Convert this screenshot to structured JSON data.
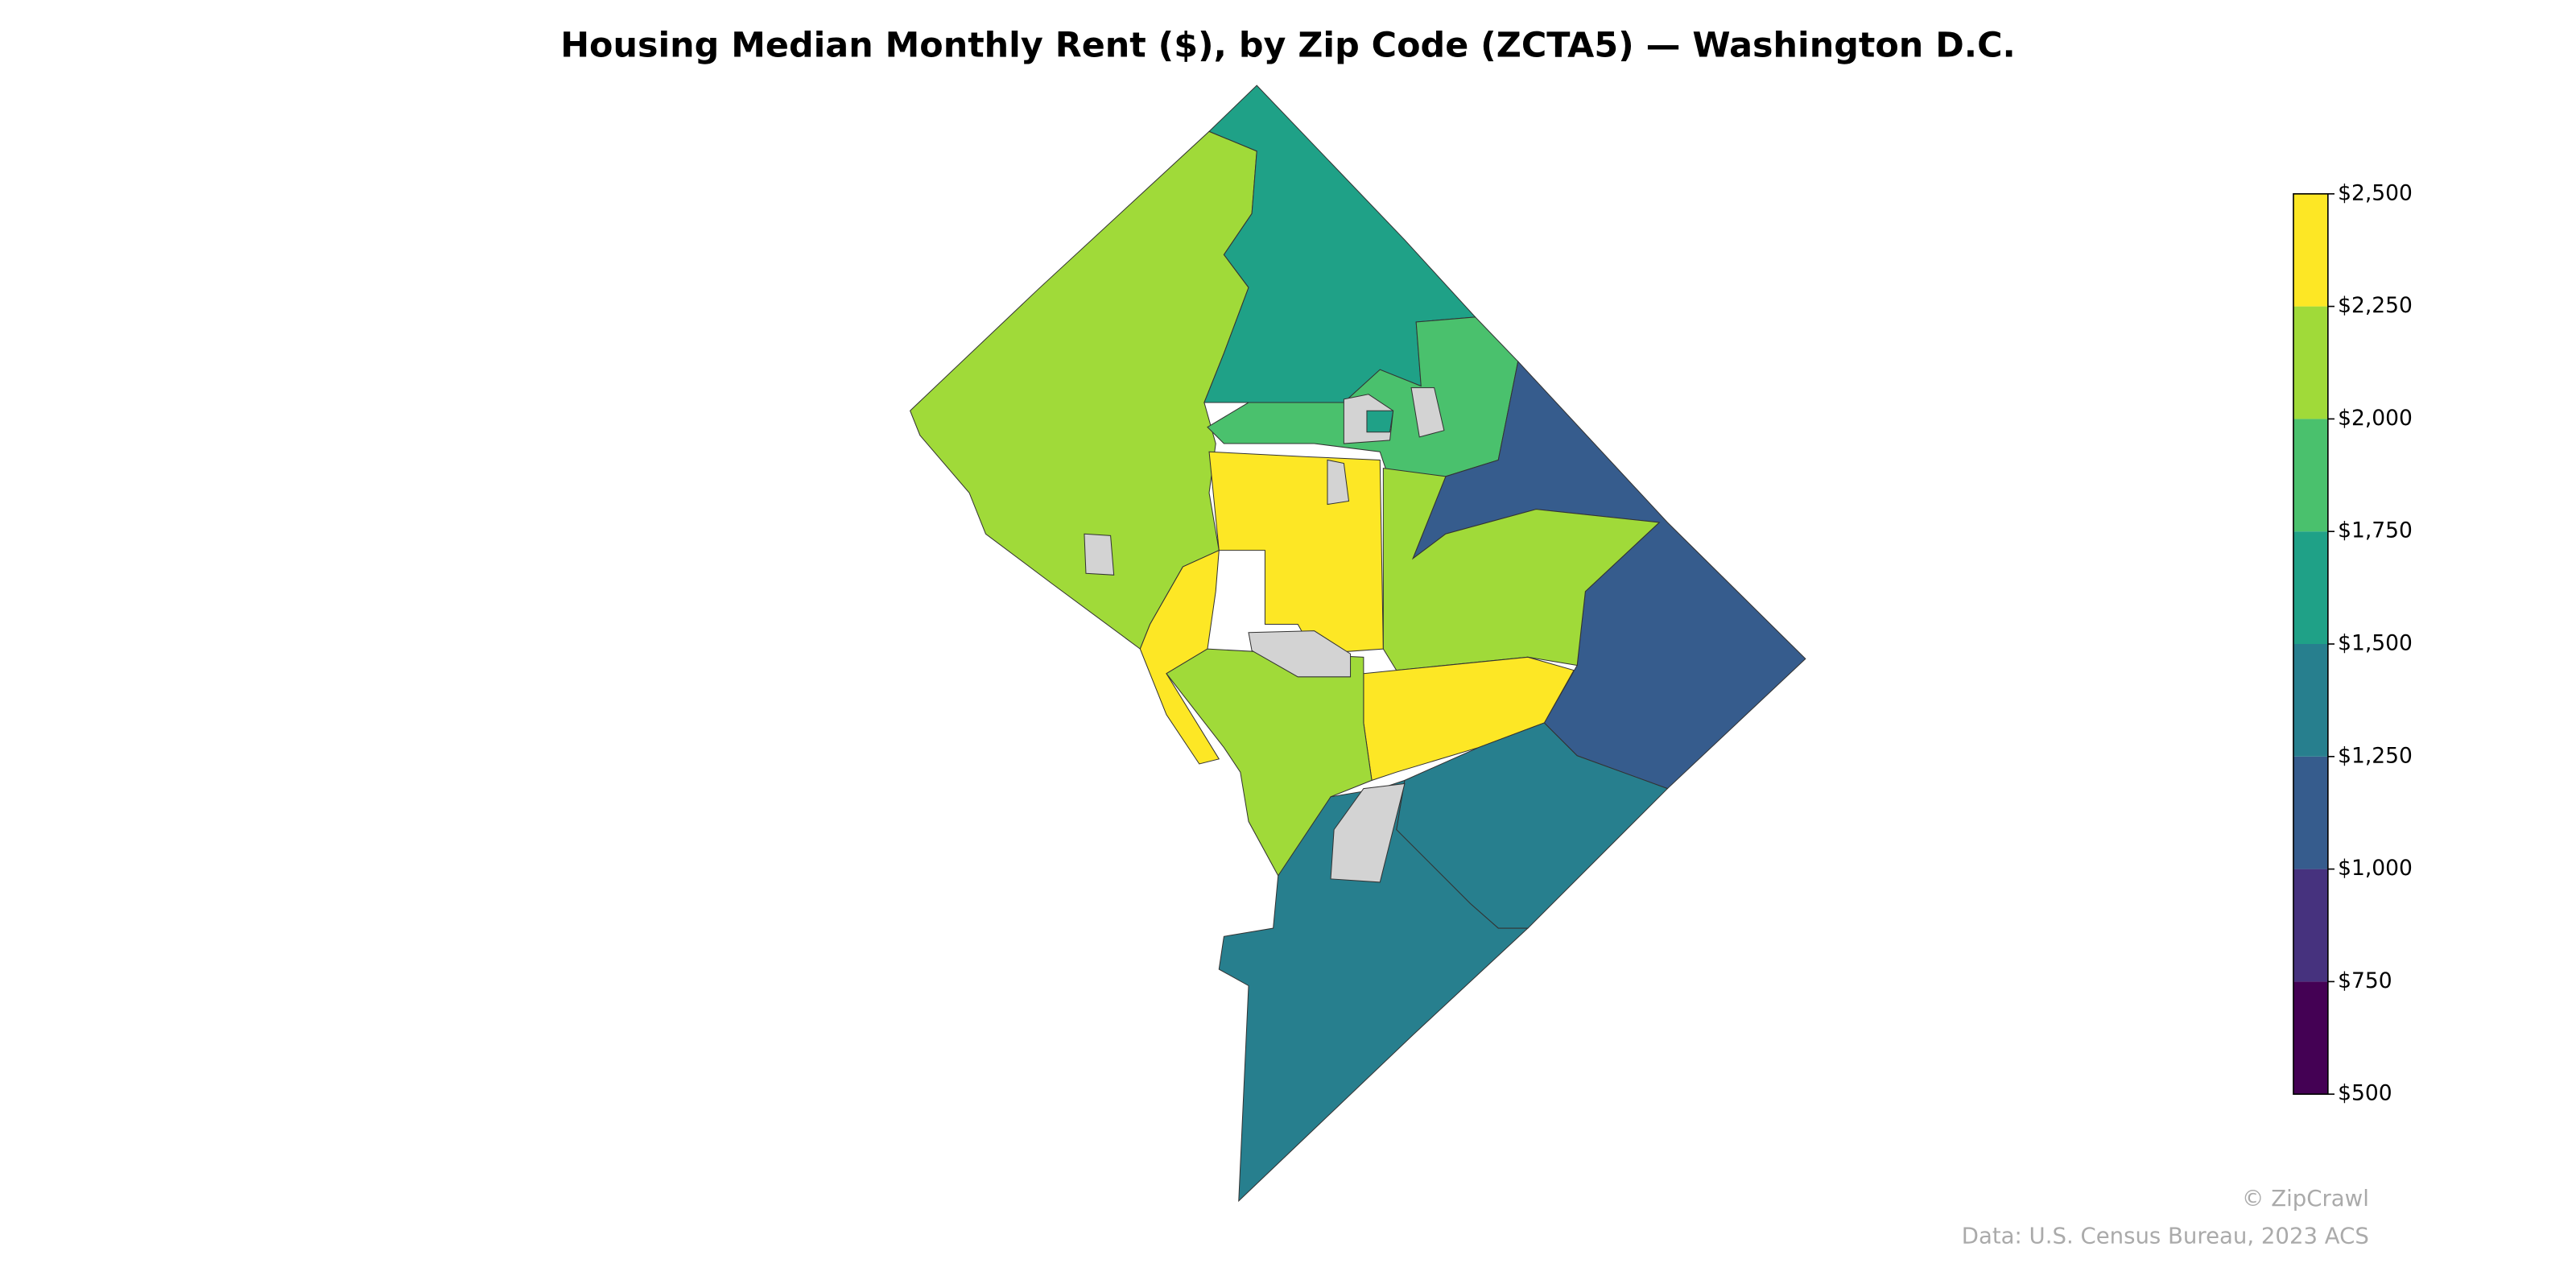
{
  "chart_data": {
    "type": "choropleth",
    "title": "Housing Median Monthly Rent ($), by Zip Code (ZCTA5) — Washington D.C.",
    "values": [
      2100,
      1600,
      1900,
      1150,
      2400,
      2300,
      2100,
      2350,
      2100,
      1400,
      1400,
      null,
      null,
      null,
      null,
      null,
      null,
      1600
    ],
    "colorbar": {
      "ticks": [
        {
          "value": 500,
          "label": "$500"
        },
        {
          "value": 750,
          "label": "$750"
        },
        {
          "value": 1000,
          "label": "$1,000"
        },
        {
          "value": 1250,
          "label": "$1,250"
        },
        {
          "value": 1500,
          "label": "$1,500"
        },
        {
          "value": 1750,
          "label": "$1,750"
        },
        {
          "value": 2000,
          "label": "$2,000"
        },
        {
          "value": 2250,
          "label": "$2,250"
        },
        {
          "value": 2500,
          "label": "$2,500"
        }
      ],
      "colors": [
        "#440154",
        "#46327e",
        "#365c8d",
        "#277f8e",
        "#1fa187",
        "#4ac16d",
        "#a0da39",
        "#fde725"
      ]
    },
    "missing_color": "#d3d3d3",
    "credit": "© ZipCrawl",
    "source": "Data: U.S. Census Bureau, 2023 ACS"
  }
}
